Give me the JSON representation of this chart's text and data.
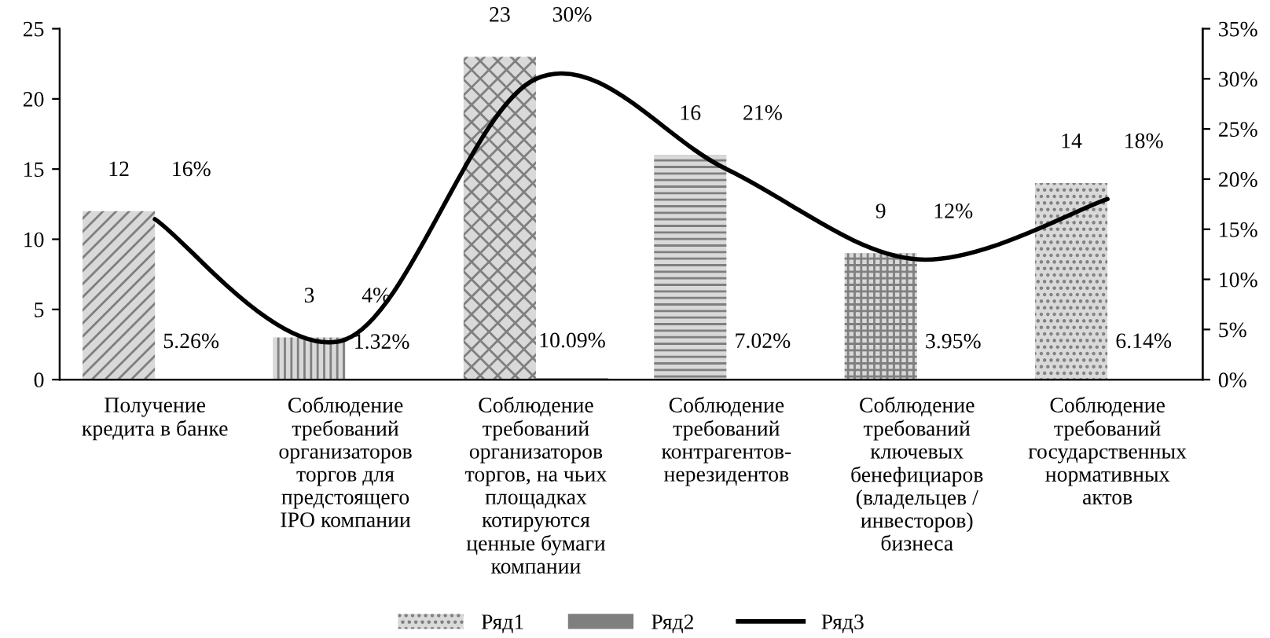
{
  "chart_data": {
    "type": "bar",
    "categories": [
      "Получение\nкредита в банке",
      "Соблюдение\nтребований\nорганизаторов\nторгов для\nпредстоящего\nIPO компании",
      "Соблюдение\nтребований\nорганизаторов\nторгов, на чьих\nплощадках\nкотируются\nценные бумаги\nкомпании",
      "Соблюдение\nтребований\nконтрагентов-\nнерезидентов",
      "Соблюдение\nтребований\nключевых\nбенефициаров\n(владельцев /\nинвесторов)\nбизнеса",
      "Соблюдение\nтребований\nгосударственных\nнормативных\nактов"
    ],
    "series": [
      {
        "name": "Ряд1",
        "color": "#d9d9d9",
        "values": [
          12,
          3,
          23,
          16,
          9,
          14
        ],
        "value_labels": [
          "12",
          "3",
          "23",
          "16",
          "9",
          "14"
        ]
      },
      {
        "name": "Ряд2",
        "color": "#7f7f7f",
        "values": [
          0.0526,
          0.0132,
          0.1009,
          0.0702,
          0.0395,
          0.0614
        ],
        "value_labels": [
          "5.26%",
          "1.32%",
          "10.09%",
          "7.02%",
          "3.95%",
          "6.14%"
        ]
      },
      {
        "name": "Ряд3",
        "type": "line",
        "axis": "y2",
        "color": "#000000",
        "values": [
          16,
          4,
          30,
          21,
          12,
          18
        ],
        "value_labels": [
          "16%",
          "4%",
          "30%",
          "21%",
          "12%",
          "18%"
        ]
      }
    ],
    "ylim": [
      0,
      25
    ],
    "yticks": [
      0,
      5,
      10,
      15,
      20,
      25
    ],
    "y2lim": [
      0,
      35
    ],
    "y2ticks": [
      {
        "value": 0,
        "label": "0%"
      },
      {
        "value": 5,
        "label": "5%"
      },
      {
        "value": 10,
        "label": "10%"
      },
      {
        "value": 15,
        "label": "15%"
      },
      {
        "value": 20,
        "label": "20%"
      },
      {
        "value": 25,
        "label": "25%"
      },
      {
        "value": 30,
        "label": "30%"
      },
      {
        "value": 35,
        "label": "35%"
      }
    ],
    "grid": false,
    "legend": "bottom",
    "marker": "none",
    "line_style": "solid"
  }
}
